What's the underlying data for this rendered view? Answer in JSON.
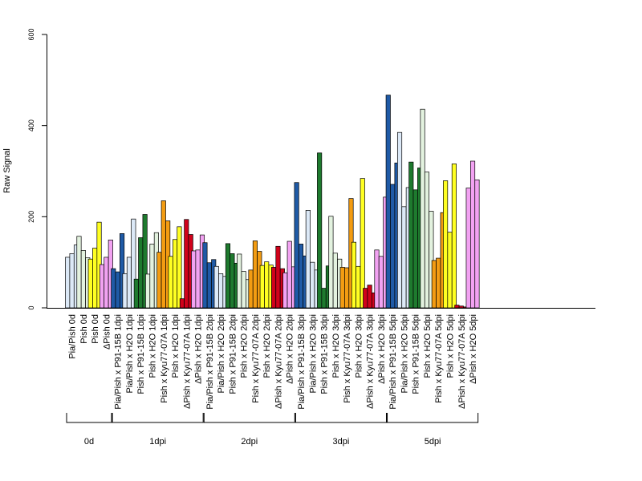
{
  "chart_data": {
    "type": "bar",
    "ylabel": "Raw Signal",
    "ylim": [
      0,
      600
    ],
    "yticks": [
      "0",
      "200",
      "400",
      "600"
    ],
    "grid": false,
    "bar_colors": {
      "blue": "#1f5aa6",
      "lightblue": "#dce9f7",
      "darkgreen": "#1e7a2e",
      "palegreen": "#e3f2df",
      "orange": "#f39c12",
      "yellow": "#ffff22",
      "red": "#d0021b",
      "pink": "#f2a2f2"
    },
    "categories": [
      {
        "label": "Pia/Pish 0d",
        "color": "lightblue",
        "values": [
          111,
          119,
          138
        ]
      },
      {
        "label": "Pish 0d",
        "color": "palegreen",
        "values": [
          157,
          126,
          110
        ]
      },
      {
        "label": "Pish 0d",
        "color": "yellow",
        "values": [
          107,
          131,
          188
        ]
      },
      {
        "label": "ΔPish 0d",
        "color": "pink",
        "values": [
          95,
          111,
          149
        ]
      },
      {
        "label": "Pia/Pish x P91-15B 1dpi",
        "color": "blue",
        "values": [
          86,
          79,
          163
        ]
      },
      {
        "label": "Pia/Pish x H2O 1dpi",
        "color": "lightblue",
        "values": [
          75,
          111,
          195
        ]
      },
      {
        "label": "Pish x P91-15B 1dpi",
        "color": "darkgreen",
        "values": [
          63,
          154,
          205
        ]
      },
      {
        "label": "Pish x H2O 1dpi",
        "color": "palegreen",
        "values": [
          74,
          140,
          165
        ]
      },
      {
        "label": "Pish x Kyu77-07A 1dpi",
        "color": "orange",
        "values": [
          122,
          235,
          191
        ]
      },
      {
        "label": "Pish x H2O 1dpi",
        "color": "yellow",
        "values": [
          113,
          150,
          178
        ]
      },
      {
        "label": "ΔPish x Kyu77-07A 1dpi",
        "color": "red",
        "values": [
          20,
          194,
          161
        ]
      },
      {
        "label": "ΔPish x H2O 1dpi",
        "color": "pink",
        "values": [
          125,
          127,
          160
        ]
      },
      {
        "label": "Pia/Pish x P91-15B 2dpi",
        "color": "blue",
        "values": [
          143,
          99,
          106
        ]
      },
      {
        "label": "Pia/Pish x H2O 2dpi",
        "color": "lightblue",
        "values": [
          91,
          75,
          69
        ]
      },
      {
        "label": "Pish x P91-15B 2dpi",
        "color": "darkgreen",
        "values": [
          141,
          119,
          98
        ]
      },
      {
        "label": "Pish x H2O 2dpi",
        "color": "palegreen",
        "values": [
          118,
          80,
          62
        ]
      },
      {
        "label": "Pish x Kyu77-07A 2dpi",
        "color": "orange",
        "values": [
          83,
          147,
          124
        ]
      },
      {
        "label": "Pish x H2O 2dpi",
        "color": "yellow",
        "values": [
          93,
          101,
          94
        ]
      },
      {
        "label": "ΔPish x Kyu77-07A 2dpi",
        "color": "red",
        "values": [
          89,
          135,
          86
        ]
      },
      {
        "label": "ΔPish x H2O 2dpi",
        "color": "pink",
        "values": [
          77,
          146,
          90
        ]
      },
      {
        "label": "Pia/Pish x P91-15B 3dpi",
        "color": "blue",
        "values": [
          275,
          140,
          114
        ]
      },
      {
        "label": "Pia/Pish x H2O 3dpi",
        "color": "lightblue",
        "values": [
          214,
          100,
          83
        ]
      },
      {
        "label": "Pish x P91-15B 3dpi",
        "color": "darkgreen",
        "values": [
          340,
          43,
          92
        ]
      },
      {
        "label": "Pish x H2O 3dpi",
        "color": "palegreen",
        "values": [
          201,
          120,
          107
        ]
      },
      {
        "label": "Pish x Kyu77-07A 3dpi",
        "color": "orange",
        "values": [
          89,
          88,
          240
        ]
      },
      {
        "label": "Pish x H2O 3dpi",
        "color": "yellow",
        "values": [
          144,
          91,
          284
        ]
      },
      {
        "label": "ΔPish x Kyu77-07A 3dpi",
        "color": "red",
        "values": [
          43,
          50,
          33
        ]
      },
      {
        "label": "ΔPish x H2O 3dpi",
        "color": "pink",
        "values": [
          127,
          113,
          243
        ]
      },
      {
        "label": "Pia/Pish x P91-15B 5dpi",
        "color": "blue",
        "values": [
          467,
          271,
          318
        ]
      },
      {
        "label": "Pia/Pish x H2O 5dpi",
        "color": "lightblue",
        "values": [
          385,
          222,
          264
        ]
      },
      {
        "label": "Pish x P91-15B 5dpi",
        "color": "darkgreen",
        "values": [
          320,
          259,
          307
        ]
      },
      {
        "label": "Pish x H2O 5dpi",
        "color": "palegreen",
        "values": [
          436,
          298,
          212
        ]
      },
      {
        "label": "Pish x Kyu77-07A 5dpi",
        "color": "orange",
        "values": [
          104,
          109,
          209
        ]
      },
      {
        "label": "Pish x H2O 5dpi",
        "color": "yellow",
        "values": [
          279,
          166,
          316
        ]
      },
      {
        "label": "ΔPish x Kyu77-07A 5dpi",
        "color": "red",
        "values": [
          6,
          4,
          2
        ]
      },
      {
        "label": "ΔPish x H2O 5dpi",
        "color": "pink",
        "values": [
          263,
          322,
          281
        ]
      }
    ],
    "groups": [
      {
        "label": "0d",
        "first": 0,
        "last": 3
      },
      {
        "label": "1dpi",
        "first": 4,
        "last": 11
      },
      {
        "label": "2dpi",
        "first": 12,
        "last": 19
      },
      {
        "label": "3dpi",
        "first": 20,
        "last": 27
      },
      {
        "label": "5dpi",
        "first": 28,
        "last": 35
      }
    ]
  }
}
